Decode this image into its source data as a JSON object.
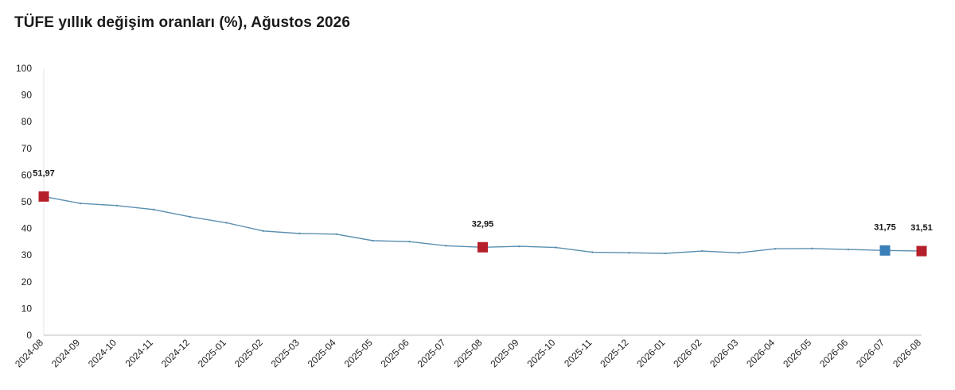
{
  "title": "TÜFE yıllık değişim oranları (%), Ağustos 2026",
  "chart_data": {
    "type": "line",
    "title": "TÜFE yıllık değişim oranları (%), Ağustos 2026",
    "xlabel": "",
    "ylabel": "",
    "ylim": [
      0,
      100
    ],
    "yticks": [
      "0",
      "10",
      "20",
      "30",
      "40",
      "50",
      "60",
      "70",
      "80",
      "90",
      "100"
    ],
    "grid": false,
    "categories": [
      "2024-08",
      "2024-09",
      "2024-10",
      "2024-11",
      "2024-12",
      "2025-01",
      "2025-02",
      "2025-03",
      "2025-04",
      "2025-05",
      "2025-06",
      "2025-07",
      "2025-08",
      "2025-09",
      "2025-10",
      "2025-11",
      "2025-12",
      "2026-01",
      "2026-02",
      "2026-03",
      "2026-04",
      "2026-05",
      "2026-06",
      "2026-07",
      "2026-08"
    ],
    "series": [
      {
        "color": "#5a8fb0",
        "values": [
          51.97,
          49.38,
          48.58,
          47.09,
          44.38,
          42.12,
          39.05,
          38.1,
          37.86,
          35.41,
          35.05,
          33.52,
          32.95,
          33.29,
          32.87,
          31.07,
          30.89,
          30.65,
          31.53,
          30.87,
          32.37,
          32.48,
          32.1,
          31.75,
          31.51
        ]
      }
    ],
    "highlights": [
      {
        "index": 0,
        "label": "51,97",
        "color": "#b5202a"
      },
      {
        "index": 12,
        "label": "32,95",
        "color": "#b5202a"
      },
      {
        "index": 23,
        "label": "31,75",
        "color": "#3b7fb8"
      },
      {
        "index": 24,
        "label": "31,51",
        "color": "#b5202a"
      }
    ]
  }
}
